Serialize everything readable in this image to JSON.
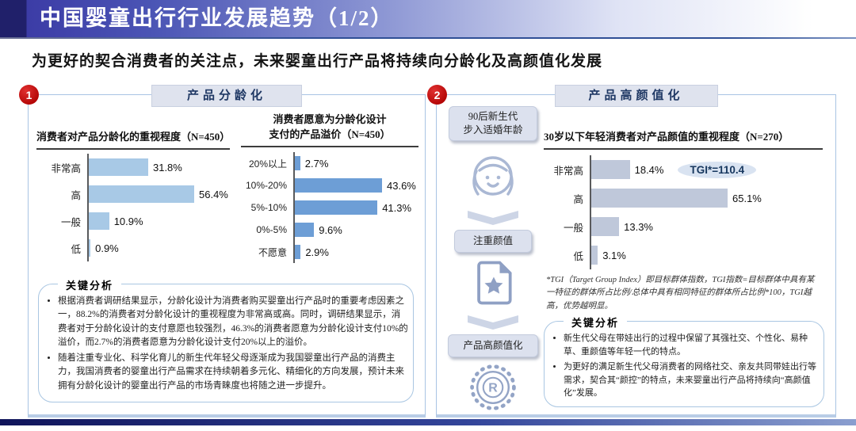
{
  "header": {
    "title": "中国婴童出行行业发展趋势（1/2）"
  },
  "subtitle": "为更好的契合消费者的关注点，未来婴童出行产品将持续向分龄化及高颜值化发展",
  "colors": {
    "badge_red": "#c00000",
    "panel_border": "#a9c4e4",
    "tab_bg": "#dfe3ee",
    "bar_light_blue": "#a8c9e6",
    "bar_blue": "#6d9ed6",
    "bar_gray_blue": "#bfc8da",
    "tgi_bubble_bg": "#d9e3f1"
  },
  "panel1": {
    "badge": "1",
    "tab": "产品分龄化",
    "analysis": {
      "title": "关键分析",
      "bullets": [
        "根据消费者调研结果显示，分龄化设计为消费者购买婴童出行产品时的重要考虑因素之一，88.2%的消费者对分龄化设计的重视程度为非常高或高。同时，调研结果显示，消费者对于分龄化设计的支付意愿也较强烈，46.3%的消费者愿意为分龄化设计支付10%的溢价，而2.7%的消费者愿意为分龄化设计支付20%以上的溢价。",
        "随着注重专业化、科学化育儿的新生代年轻父母逐渐成为我国婴童出行产品的消费主力，我国消费者的婴童出行产品需求在持续朝着多元化、精细化的方向发展，预计未来拥有分龄化设计的婴童出行产品的市场青睐度也将随之进一步提升。"
      ]
    }
  },
  "panel2": {
    "badge": "2",
    "tab": "产品高颜值化",
    "flow": {
      "box1": "90后新生代\n步入适婚年龄",
      "box2": "注重颜值",
      "box3": "产品高颜值化"
    },
    "footnote": "*TGI（Target Group Index）即目标群体指数，TGI指数=目标群体中具有某一特征的群体所占比例/总体中具有相同特征的群体所占比例*100，TGI越高，优势越明显。",
    "analysis": {
      "title": "关键分析",
      "bullets": [
        "新生代父母在带娃出行的过程中保留了其强社交、个性化、易种草、重颜值等年轻一代的特点。",
        "为更好的满足新生代父母消费者的网络社交、亲友共同带娃出行等需求，契合其“颜控”的特点，未来婴童出行产品将持续向“高颜值化”发展。"
      ]
    }
  },
  "chart_data": [
    {
      "type": "bar",
      "orientation": "horizontal",
      "title": "消费者对产品分龄化的重视程度（N=450）",
      "categories": [
        "非常高",
        "高",
        "一般",
        "低"
      ],
      "values": [
        31.8,
        56.4,
        10.9,
        0.9
      ],
      "unit": "%",
      "bar_color": "#a8c9e6",
      "xlim": [
        0,
        60
      ],
      "grid": false
    },
    {
      "type": "bar",
      "orientation": "horizontal",
      "title": "消费者愿意为分龄化设计\n支付的产品溢价（N=450）",
      "categories": [
        "20%以上",
        "10%-20%",
        "5%-10%",
        "0%-5%",
        "不愿意"
      ],
      "values": [
        2.7,
        43.6,
        41.3,
        9.6,
        2.9
      ],
      "unit": "%",
      "bar_color": "#6d9ed6",
      "xlim": [
        0,
        50
      ],
      "grid": false
    },
    {
      "type": "bar",
      "orientation": "horizontal",
      "title": "30岁以下年轻消费者对产品颜值的重视程度（N=270）",
      "categories": [
        "非常高",
        "高",
        "一般",
        "低"
      ],
      "values": [
        18.4,
        65.1,
        13.3,
        3.1
      ],
      "unit": "%",
      "bar_color": "#bfc8da",
      "annotation": "TGI*=110.4",
      "annotation_row": 0,
      "xlim": [
        0,
        70
      ],
      "grid": false
    }
  ]
}
